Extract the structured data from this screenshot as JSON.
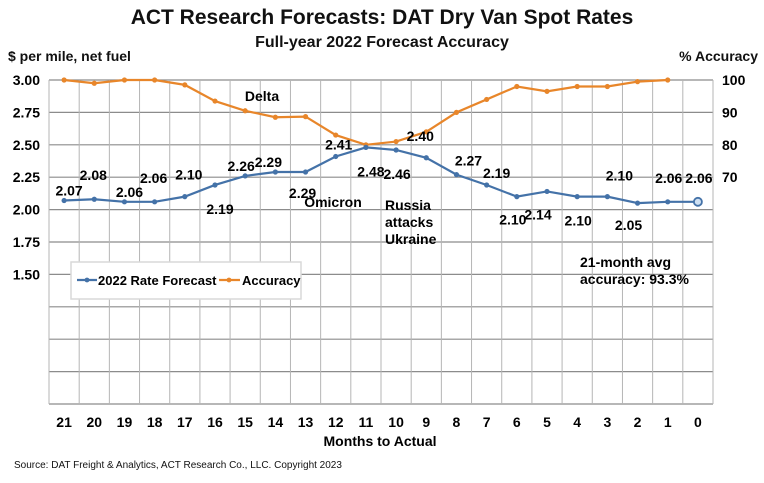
{
  "title": "ACT Research Forecasts: DAT Dry Van Spot Rates",
  "subtitle": "Full-year 2022 Forecast Accuracy",
  "source": "Source: DAT Freight & Analytics, ACT Research Co., LLC. Copyright 2023",
  "chart_data": {
    "type": "line",
    "xlabel": "Months to Actual",
    "ylabel": "$ per mile, net fuel",
    "y2label": "% Accuracy",
    "categories": [
      "21",
      "20",
      "19",
      "18",
      "17",
      "16",
      "15",
      "14",
      "13",
      "12",
      "11",
      "10",
      "9",
      "8",
      "7",
      "6",
      "5",
      "4",
      "3",
      "2",
      "1",
      "0"
    ],
    "ylim": [
      0.5,
      3.0
    ],
    "y_ticks": [
      "3.00",
      "2.75",
      "2.50",
      "2.25",
      "2.00",
      "1.75",
      "1.50"
    ],
    "y2lim": [
      0,
      100
    ],
    "y2_ticks": [
      "100",
      "90",
      "80",
      "70"
    ],
    "grid": true,
    "legend": "left-middle",
    "series": [
      {
        "name": "2022 Rate Forecast",
        "axis": "left",
        "color": "#4472A8",
        "values": [
          2.07,
          2.08,
          2.06,
          2.06,
          2.1,
          2.19,
          2.26,
          2.29,
          2.29,
          2.41,
          2.48,
          2.46,
          2.4,
          2.27,
          2.19,
          2.1,
          2.14,
          2.1,
          2.1,
          2.05,
          2.06,
          2.06
        ],
        "labels": [
          "2.07",
          "2.08",
          "2.06",
          "2.06",
          "2.10",
          "2.19",
          "2.26",
          "2.29",
          "2.29",
          "2.41",
          "2.48",
          "2.46",
          "2.40",
          "2.27",
          "2.19",
          "2.10",
          "2.14",
          "2.10",
          "2.10",
          "2.05",
          "2.06",
          "2.06"
        ]
      },
      {
        "name": "Accuracy",
        "axis": "right",
        "color": "#E8862A",
        "values": [
          100,
          99,
          100,
          100,
          98.5,
          93.5,
          90.5,
          88.5,
          88.7,
          83,
          80,
          81,
          84,
          90,
          94,
          98,
          96.5,
          98,
          98,
          99.5,
          100,
          null
        ]
      }
    ],
    "annotations": [
      "Delta",
      "Omicron",
      "Russia attacks Ukraine",
      "21-month avg accuracy: 93.3%"
    ]
  }
}
